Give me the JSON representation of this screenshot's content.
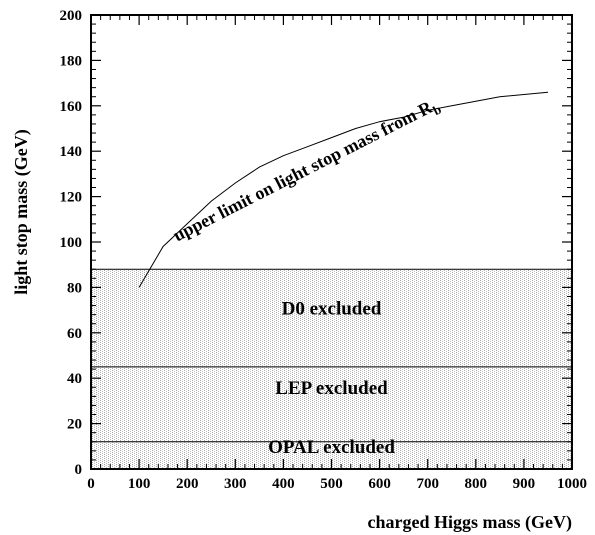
{
  "chart_data": {
    "type": "area",
    "xlabel": "charged Higgs mass (GeV)",
    "ylabel": "light stop mass (GeV)",
    "xlim": [
      0,
      1000
    ],
    "ylim": [
      0,
      200
    ],
    "xticks": [
      0,
      100,
      200,
      300,
      400,
      500,
      600,
      700,
      800,
      900,
      1000
    ],
    "yticks": [
      0,
      20,
      40,
      60,
      80,
      100,
      120,
      140,
      160,
      180,
      200
    ],
    "regions": [
      {
        "name": "D0 excluded",
        "ymin": 45,
        "ymax": 88,
        "label_x": 500,
        "label_y": 68
      },
      {
        "name": "LEP excluded",
        "ymin": 12,
        "ymax": 45,
        "label_x": 500,
        "label_y": 33
      },
      {
        "name": "OPAL excluded",
        "ymin": 0,
        "ymax": 12,
        "label_x": 500,
        "label_y": 7
      }
    ],
    "series": [
      {
        "name": "upper limit on light stop mass from R_b",
        "x": [
          100,
          150,
          200,
          250,
          300,
          350,
          400,
          450,
          500,
          550,
          600,
          650,
          700,
          750,
          800,
          850,
          900,
          950
        ],
        "y": [
          80,
          98,
          108,
          118,
          126,
          133,
          138,
          142,
          146,
          150,
          153,
          155,
          158,
          160,
          162,
          164,
          165,
          166
        ]
      }
    ],
    "curve_label": {
      "main": "upper limit on light stop mass from R",
      "subscript": "b",
      "x": 100,
      "y": 101,
      "angle_deg": -27
    }
  },
  "colors": {
    "axis": "#000000",
    "region_line": "#000000",
    "dot": "#b5b5b5"
  }
}
